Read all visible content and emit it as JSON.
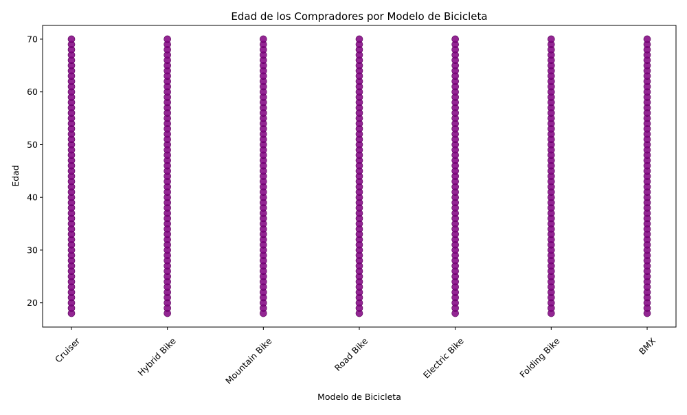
{
  "chart_data": {
    "type": "scatter",
    "title": "Edad de los Compradores por Modelo de Bicicleta",
    "xlabel": "Modelo de Bicicleta",
    "ylabel": "Edad",
    "categories": [
      "Cruiser",
      "Hybrid Bike",
      "Mountain Bike",
      "Road Bike",
      "Electric Bike",
      "Folding Bike",
      "BMX"
    ],
    "y_range": [
      18,
      70
    ],
    "ylim": [
      15.4,
      72.6
    ],
    "yticks": [
      20,
      30,
      40,
      50,
      60,
      70
    ],
    "marker_color": "#800080",
    "grid": false,
    "legend": false
  }
}
